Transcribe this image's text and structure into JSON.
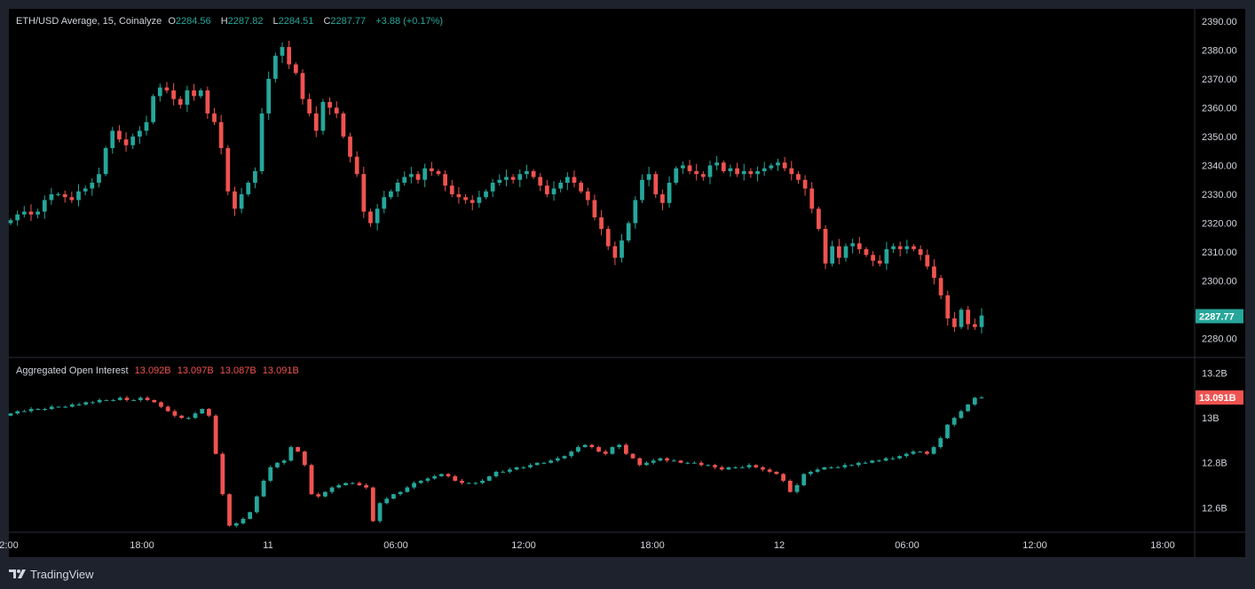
{
  "colors": {
    "up": "#26a69a",
    "down": "#ef5350",
    "background": "#000000",
    "frame": "#1e222d",
    "text": "#d1d4dc",
    "grid": "#2a2e39"
  },
  "price_legend": {
    "title": "ETH/USD Average, 15, Coinalyze",
    "o_label": "O",
    "o_value": "2284.56",
    "h_label": "H",
    "h_value": "2287.82",
    "l_label": "L",
    "l_value": "2284.51",
    "c_label": "C",
    "c_value": "2287.77",
    "change": "+3.88 (+0.17%)"
  },
  "oi_legend": {
    "title": "Aggregated Open Interest",
    "values": [
      "13.092B",
      "13.097B",
      "13.087B",
      "13.091B"
    ]
  },
  "brand": {
    "name": "TradingView",
    "icon": "tradingview-logo-icon"
  },
  "chart_data": [
    {
      "type": "candlestick",
      "title": "ETH/USD Average, 15, Coinalyze",
      "interval": "15",
      "ylim": [
        2275,
        2393
      ],
      "y_ticks": [
        "2390.00",
        "2380.00",
        "2370.00",
        "2360.00",
        "2350.00",
        "2340.00",
        "2330.00",
        "2320.00",
        "2310.00",
        "2300.00",
        "2280.00"
      ],
      "y_tick_values": [
        2390,
        2380,
        2370,
        2360,
        2350,
        2340,
        2330,
        2320,
        2310,
        2300,
        2280
      ],
      "last_price_label": "2287.77",
      "last_price": 2287.77,
      "x_ticks": [
        "2:00",
        "18:00",
        "11",
        "06:00",
        "12:00",
        "18:00",
        "12",
        "06:00",
        "12:00",
        "18:00"
      ],
      "close": [
        2321,
        2323,
        2324,
        2323,
        2324,
        2328,
        2330,
        2330,
        2329,
        2328,
        2331,
        2332,
        2334,
        2337,
        2346,
        2352,
        2349,
        2347,
        2350,
        2352,
        2355,
        2364,
        2367,
        2366,
        2363,
        2361,
        2366,
        2364,
        2366,
        2358,
        2355,
        2346,
        2331,
        2325,
        2330,
        2334,
        2338,
        2358,
        2370,
        2378,
        2381,
        2375,
        2372,
        2363,
        2358,
        2352,
        2362,
        2360,
        2358,
        2350,
        2343,
        2337,
        2324,
        2320,
        2325,
        2329,
        2331,
        2334,
        2336,
        2337,
        2335,
        2339,
        2338,
        2337,
        2333,
        2330,
        2329,
        2328,
        2327,
        2329,
        2331,
        2334,
        2335,
        2336,
        2335,
        2337,
        2338,
        2336,
        2333,
        2330,
        2332,
        2334,
        2336,
        2334,
        2331,
        2328,
        2322,
        2318,
        2312,
        2308,
        2314,
        2320,
        2328,
        2335,
        2337,
        2330,
        2327,
        2334,
        2339,
        2340,
        2338,
        2337,
        2336,
        2340,
        2341,
        2338,
        2339,
        2337,
        2338,
        2337,
        2338,
        2339,
        2340,
        2341,
        2339,
        2337,
        2335,
        2332,
        2325,
        2318,
        2306,
        2312,
        2308,
        2312,
        2313,
        2311,
        2309,
        2307,
        2306,
        2311,
        2312,
        2311,
        2312,
        2311,
        2309,
        2305,
        2301,
        2295,
        2287,
        2284,
        2290,
        2285,
        2284,
        2288
      ],
      "open_first": 2320,
      "high_extremes": [
        2382,
        2369
      ],
      "low_extremes": [
        2281,
        2304
      ]
    },
    {
      "type": "candlestick",
      "title": "Aggregated Open Interest",
      "ylim": [
        12.53,
        13.23
      ],
      "y_ticks": [
        "13.2B",
        "13B",
        "12.8B",
        "12.6B"
      ],
      "y_tick_values": [
        13.2,
        13.0,
        12.8,
        12.6
      ],
      "last_value_label": "13.091B",
      "last_value": 13.091,
      "close": [
        13.02,
        13.03,
        13.03,
        13.04,
        13.04,
        13.04,
        13.05,
        13.05,
        13.05,
        13.06,
        13.06,
        13.07,
        13.07,
        13.08,
        13.08,
        13.08,
        13.09,
        13.08,
        13.08,
        13.09,
        13.08,
        13.07,
        13.05,
        13.03,
        13.01,
        13.0,
        13.0,
        13.02,
        13.04,
        13.01,
        12.84,
        12.66,
        12.52,
        12.53,
        12.55,
        12.58,
        12.65,
        12.72,
        12.78,
        12.8,
        12.81,
        12.87,
        12.85,
        12.79,
        12.66,
        12.65,
        12.67,
        12.69,
        12.7,
        12.71,
        12.71,
        12.7,
        12.69,
        12.54,
        12.62,
        12.64,
        12.66,
        12.67,
        12.69,
        12.71,
        12.72,
        12.73,
        12.74,
        12.75,
        12.74,
        12.72,
        12.71,
        12.71,
        12.71,
        12.72,
        12.74,
        12.76,
        12.76,
        12.77,
        12.78,
        12.78,
        12.79,
        12.8,
        12.8,
        12.81,
        12.82,
        12.83,
        12.85,
        12.87,
        12.88,
        12.87,
        12.85,
        12.84,
        12.87,
        12.88,
        12.84,
        12.82,
        12.79,
        12.8,
        12.81,
        12.82,
        12.81,
        12.81,
        12.8,
        12.8,
        12.8,
        12.79,
        12.79,
        12.78,
        12.77,
        12.78,
        12.78,
        12.78,
        12.79,
        12.78,
        12.77,
        12.76,
        12.75,
        12.72,
        12.67,
        12.7,
        12.75,
        12.76,
        12.77,
        12.78,
        12.78,
        12.78,
        12.79,
        12.79,
        12.8,
        12.8,
        12.81,
        12.81,
        12.82,
        12.82,
        12.83,
        12.84,
        12.85,
        12.85,
        12.84,
        12.87,
        12.91,
        12.97,
        13.0,
        13.03,
        13.06,
        13.09,
        13.091
      ],
      "open_first": 13.01
    }
  ]
}
